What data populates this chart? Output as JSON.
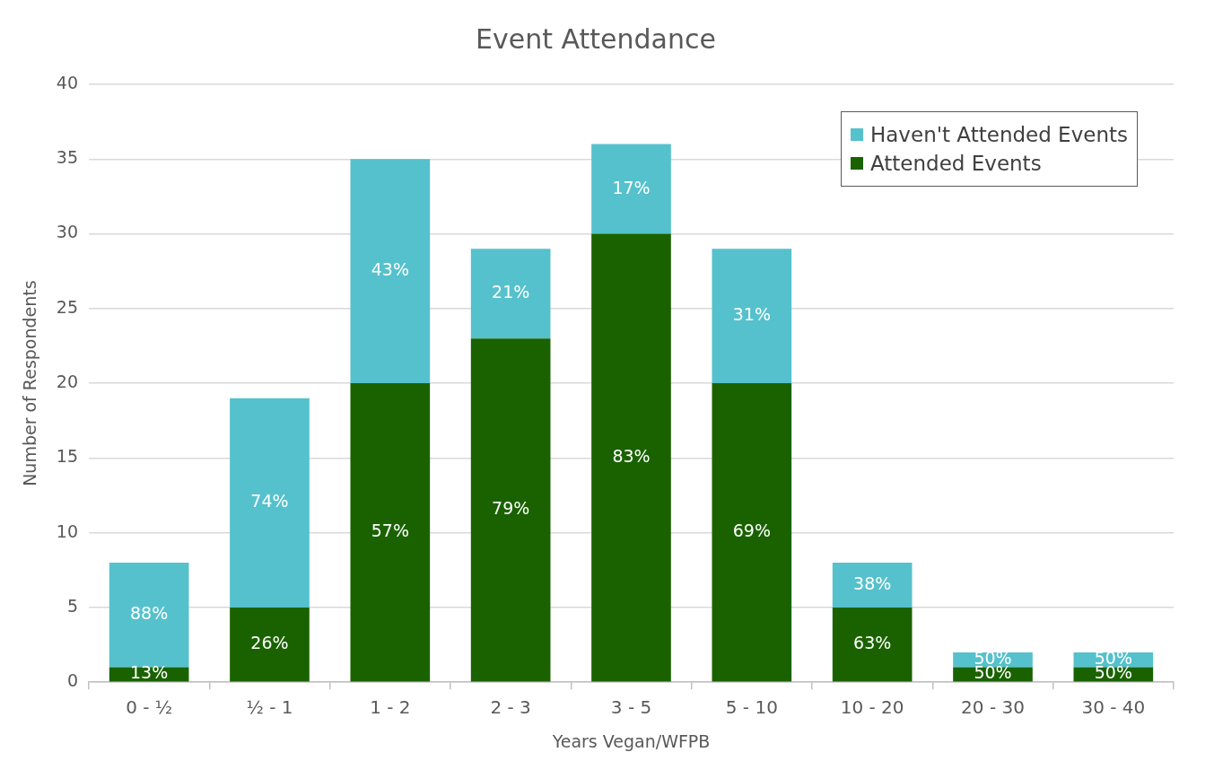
{
  "chart_data": {
    "type": "bar",
    "title": "Event Attendance",
    "xlabel": "Years Vegan/WFPB",
    "ylabel": "Number of Respondents",
    "categories": [
      "0 - ½",
      "½ - 1",
      "1 - 2",
      "2 - 3",
      "3 - 5",
      "5 - 10",
      "10 - 20",
      "20 - 30",
      "30 - 40"
    ],
    "series": [
      {
        "name": "Attended Events",
        "color": "#1a6200",
        "values": [
          1,
          5,
          20,
          23,
          30,
          20,
          5,
          1,
          1
        ]
      },
      {
        "name": "Haven't Attended Events",
        "color": "#55c1cc",
        "values": [
          7,
          14,
          15,
          6,
          6,
          9,
          3,
          1,
          1
        ]
      }
    ],
    "annotations": [
      "13%",
      "26%",
      "57%",
      "79%",
      "83%",
      "69%",
      "63%",
      "50%",
      "50%",
      "88%",
      "74%",
      "43%",
      "21%",
      "17%",
      "31%",
      "38%",
      "50%",
      "50%"
    ],
    "stacked": true,
    "ylim": [
      0,
      40
    ],
    "yticks": [
      0,
      5,
      10,
      15,
      20,
      25,
      30,
      35,
      40
    ],
    "grid": "y",
    "legend": "top right"
  }
}
